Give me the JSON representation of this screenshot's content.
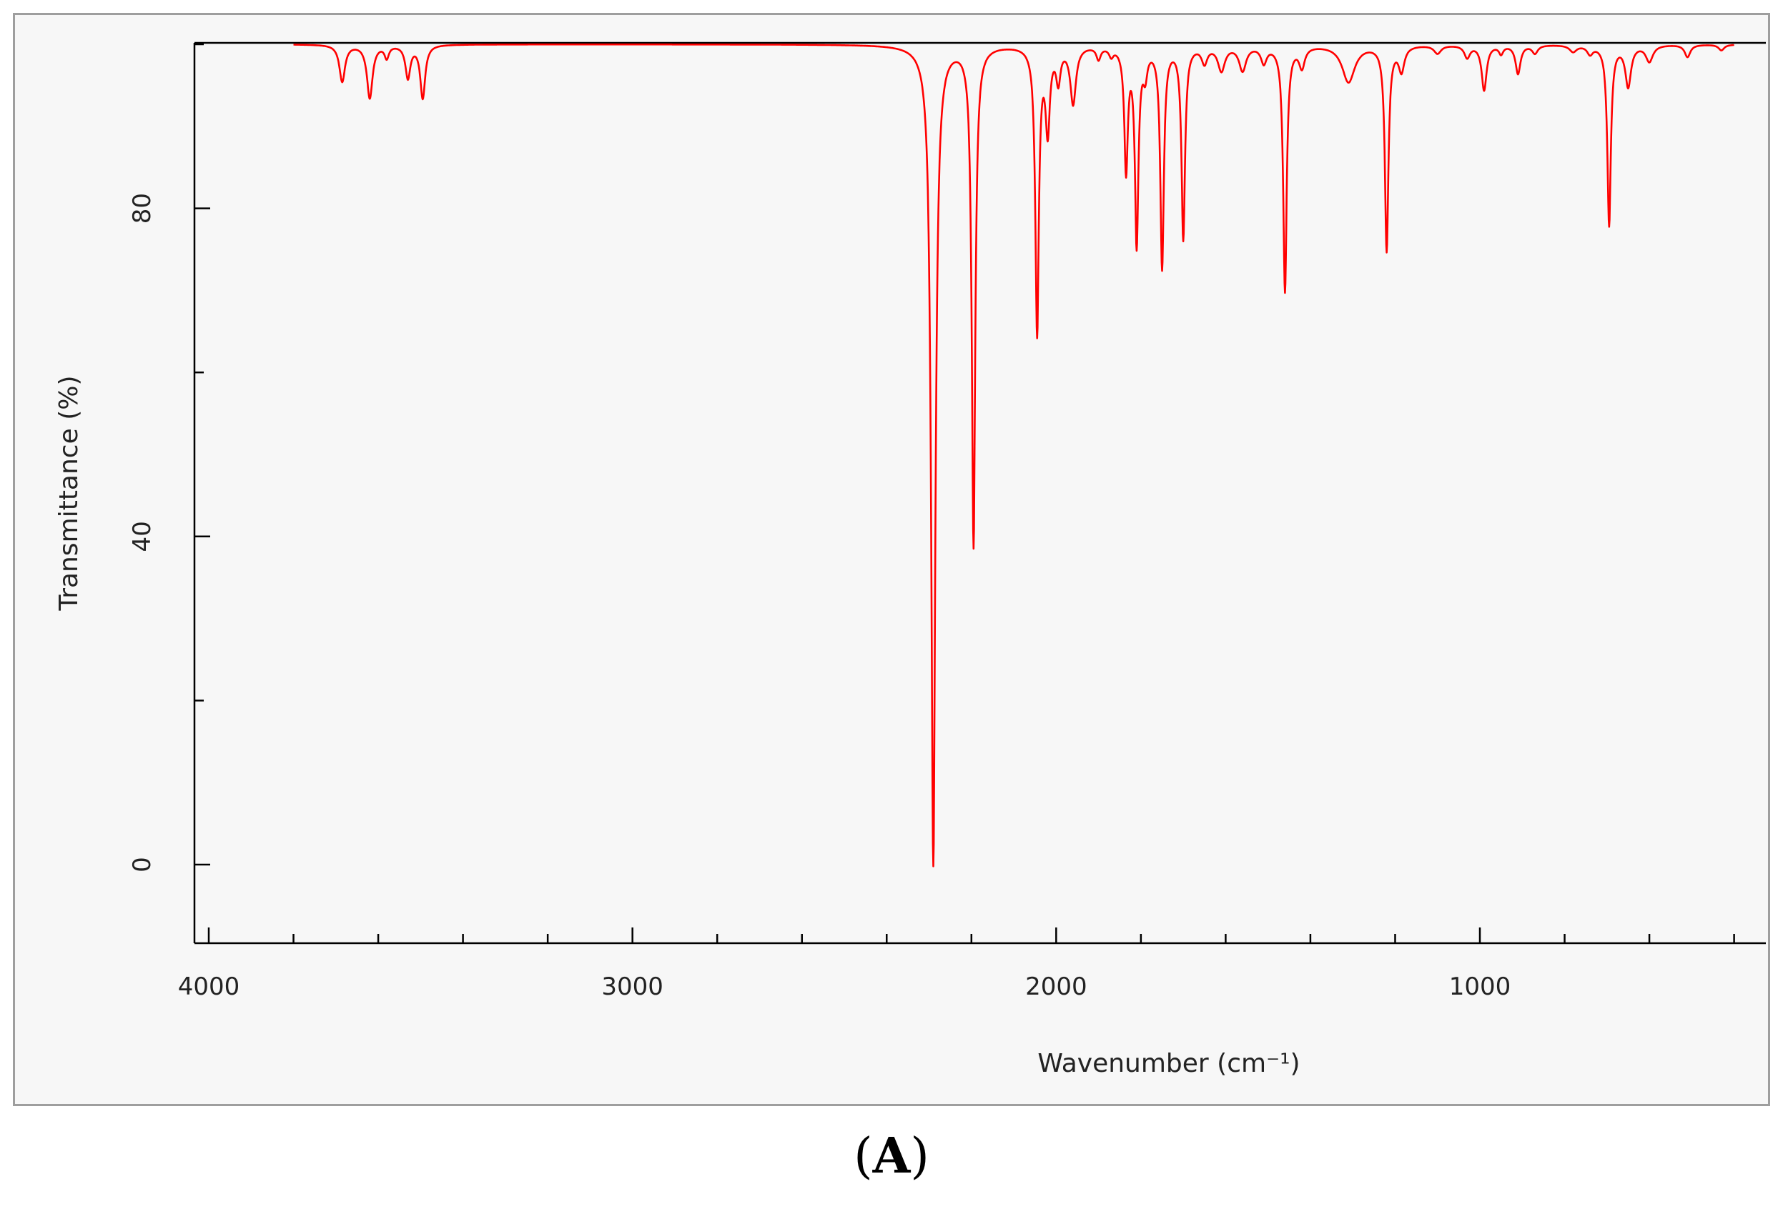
{
  "panel_label": {
    "open": "(",
    "letter": "A",
    "close": ")"
  },
  "chart_data": {
    "type": "line",
    "title": "",
    "xlabel": "Wavenumber (cm⁻¹)",
    "ylabel": "Transmittance (%)",
    "xlim": [
      4000,
      400
    ],
    "ylim": [
      -10,
      100
    ],
    "x_reversed": true,
    "x_ticks": [
      4000,
      3000,
      2000,
      1000
    ],
    "x_tick_labels": [
      "4000",
      "3000",
      "2000",
      "1000"
    ],
    "y_ticks": [
      0,
      40,
      80
    ],
    "y_tick_labels": [
      "0",
      "40",
      "80"
    ],
    "grid": false,
    "line_color": "#ff0000",
    "baseline": 100,
    "series": [
      {
        "peaks": [
          {
            "x": 3685,
            "y": 95.5,
            "w": 8
          },
          {
            "x": 3620,
            "y": 93.5,
            "w": 8
          },
          {
            "x": 3580,
            "y": 98.5,
            "w": 6
          },
          {
            "x": 3530,
            "y": 96.0,
            "w": 7
          },
          {
            "x": 3495,
            "y": 93.5,
            "w": 7
          },
          {
            "x": 2290,
            "y": 0,
            "w": 6
          },
          {
            "x": 2195,
            "y": 39,
            "w": 5
          },
          {
            "x": 2045,
            "y": 65,
            "w": 5
          },
          {
            "x": 2020,
            "y": 90,
            "w": 6
          },
          {
            "x": 1995,
            "y": 96,
            "w": 6
          },
          {
            "x": 1960,
            "y": 93,
            "w": 8
          },
          {
            "x": 1900,
            "y": 98.5,
            "w": 6
          },
          {
            "x": 1870,
            "y": 99,
            "w": 6
          },
          {
            "x": 1835,
            "y": 85,
            "w": 5
          },
          {
            "x": 1810,
            "y": 76,
            "w": 5
          },
          {
            "x": 1790,
            "y": 97,
            "w": 6
          },
          {
            "x": 1750,
            "y": 73,
            "w": 5
          },
          {
            "x": 1700,
            "y": 76.5,
            "w": 5
          },
          {
            "x": 1650,
            "y": 98,
            "w": 8
          },
          {
            "x": 1610,
            "y": 97,
            "w": 10
          },
          {
            "x": 1560,
            "y": 97,
            "w": 10
          },
          {
            "x": 1510,
            "y": 98,
            "w": 8
          },
          {
            "x": 1460,
            "y": 70,
            "w": 5
          },
          {
            "x": 1420,
            "y": 97.5,
            "w": 8
          },
          {
            "x": 1310,
            "y": 95.5,
            "w": 18
          },
          {
            "x": 1220,
            "y": 75,
            "w": 5
          },
          {
            "x": 1185,
            "y": 97,
            "w": 8
          },
          {
            "x": 1100,
            "y": 99,
            "w": 10
          },
          {
            "x": 1030,
            "y": 98.5,
            "w": 8
          },
          {
            "x": 990,
            "y": 94.5,
            "w": 7
          },
          {
            "x": 950,
            "y": 99,
            "w": 6
          },
          {
            "x": 910,
            "y": 96.5,
            "w": 7
          },
          {
            "x": 870,
            "y": 99,
            "w": 8
          },
          {
            "x": 780,
            "y": 99.2,
            "w": 10
          },
          {
            "x": 740,
            "y": 99,
            "w": 8
          },
          {
            "x": 695,
            "y": 78,
            "w": 5
          },
          {
            "x": 650,
            "y": 95,
            "w": 8
          },
          {
            "x": 600,
            "y": 98,
            "w": 10
          },
          {
            "x": 510,
            "y": 98.5,
            "w": 8
          },
          {
            "x": 430,
            "y": 99.3,
            "w": 8
          }
        ]
      }
    ]
  }
}
